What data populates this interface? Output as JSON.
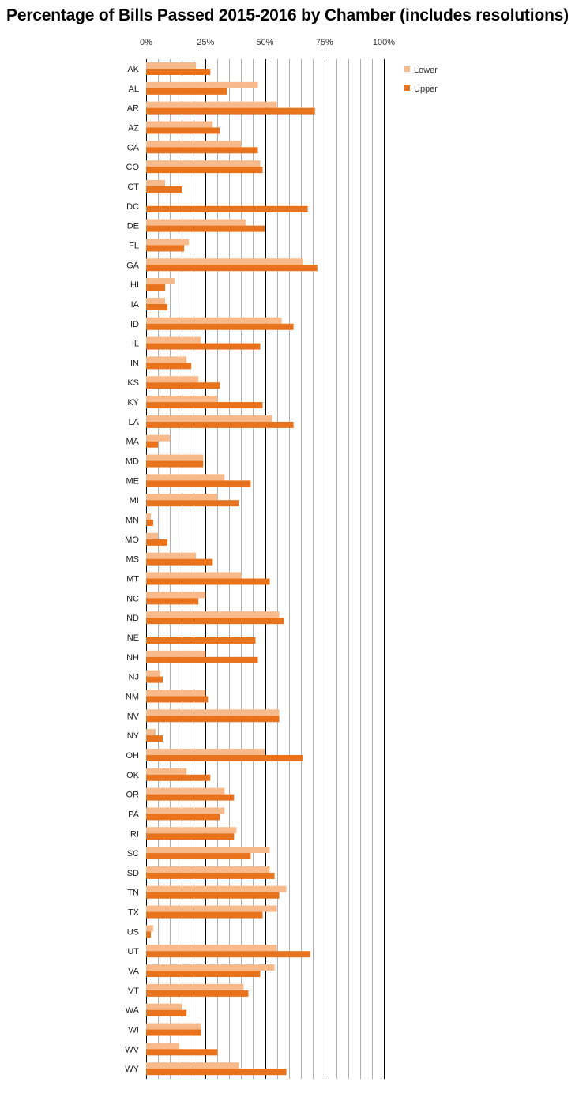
{
  "chart_data": {
    "type": "bar",
    "orientation": "horizontal",
    "title": "Percentage of Bills Passed 2015-2016  by Chamber (includes resolutions)",
    "xlabel": "",
    "ylabel": "",
    "xlim": [
      0,
      1
    ],
    "x_ticks": [
      "0%",
      "25%",
      "50%",
      "75%",
      "100%"
    ],
    "grid": "vertical",
    "legend_position": "top-right",
    "categories": [
      "AK",
      "AL",
      "AR",
      "AZ",
      "CA",
      "CO",
      "CT",
      "DC",
      "DE",
      "FL",
      "GA",
      "HI",
      "IA",
      "ID",
      "IL",
      "IN",
      "KS",
      "KY",
      "LA",
      "MA",
      "MD",
      "ME",
      "MI",
      "MN",
      "MO",
      "MS",
      "MT",
      "NC",
      "ND",
      "NE",
      "NH",
      "NJ",
      "NM",
      "NV",
      "NY",
      "OH",
      "OK",
      "OR",
      "PA",
      "RI",
      "SC",
      "SD",
      "TN",
      "TX",
      "US",
      "UT",
      "VA",
      "VT",
      "WA",
      "WI",
      "WV",
      "WY"
    ],
    "series": [
      {
        "name": "Lower",
        "color": "#F8BA8A",
        "values": [
          0.21,
          0.47,
          0.55,
          0.28,
          0.4,
          0.48,
          0.08,
          0,
          0.42,
          0.18,
          0.66,
          0.12,
          0.08,
          0.57,
          0.23,
          0.17,
          0.22,
          0.3,
          0.53,
          0.1,
          0.24,
          0.33,
          0.3,
          0.02,
          0.05,
          0.21,
          0.4,
          0.25,
          0.56,
          0,
          0.25,
          0.06,
          0.25,
          0.56,
          0.04,
          0.5,
          0.17,
          0.33,
          0.33,
          0.38,
          0.52,
          0.52,
          0.59,
          0.55,
          0.03,
          0.55,
          0.54,
          0.41,
          0.15,
          0.23,
          0.14,
          0.39
        ]
      },
      {
        "name": "Upper",
        "color": "#E8731C",
        "values": [
          0.27,
          0.34,
          0.71,
          0.31,
          0.47,
          0.49,
          0.15,
          0.68,
          0.5,
          0.16,
          0.72,
          0.08,
          0.09,
          0.62,
          0.48,
          0.19,
          0.31,
          0.49,
          0.62,
          0.05,
          0.24,
          0.44,
          0.39,
          0.03,
          0.09,
          0.28,
          0.52,
          0.22,
          0.58,
          0.46,
          0.47,
          0.07,
          0.26,
          0.56,
          0.07,
          0.66,
          0.27,
          0.37,
          0.31,
          0.37,
          0.44,
          0.54,
          0.56,
          0.49,
          0.02,
          0.69,
          0.48,
          0.43,
          0.17,
          0.23,
          0.3,
          0.59
        ]
      }
    ]
  }
}
